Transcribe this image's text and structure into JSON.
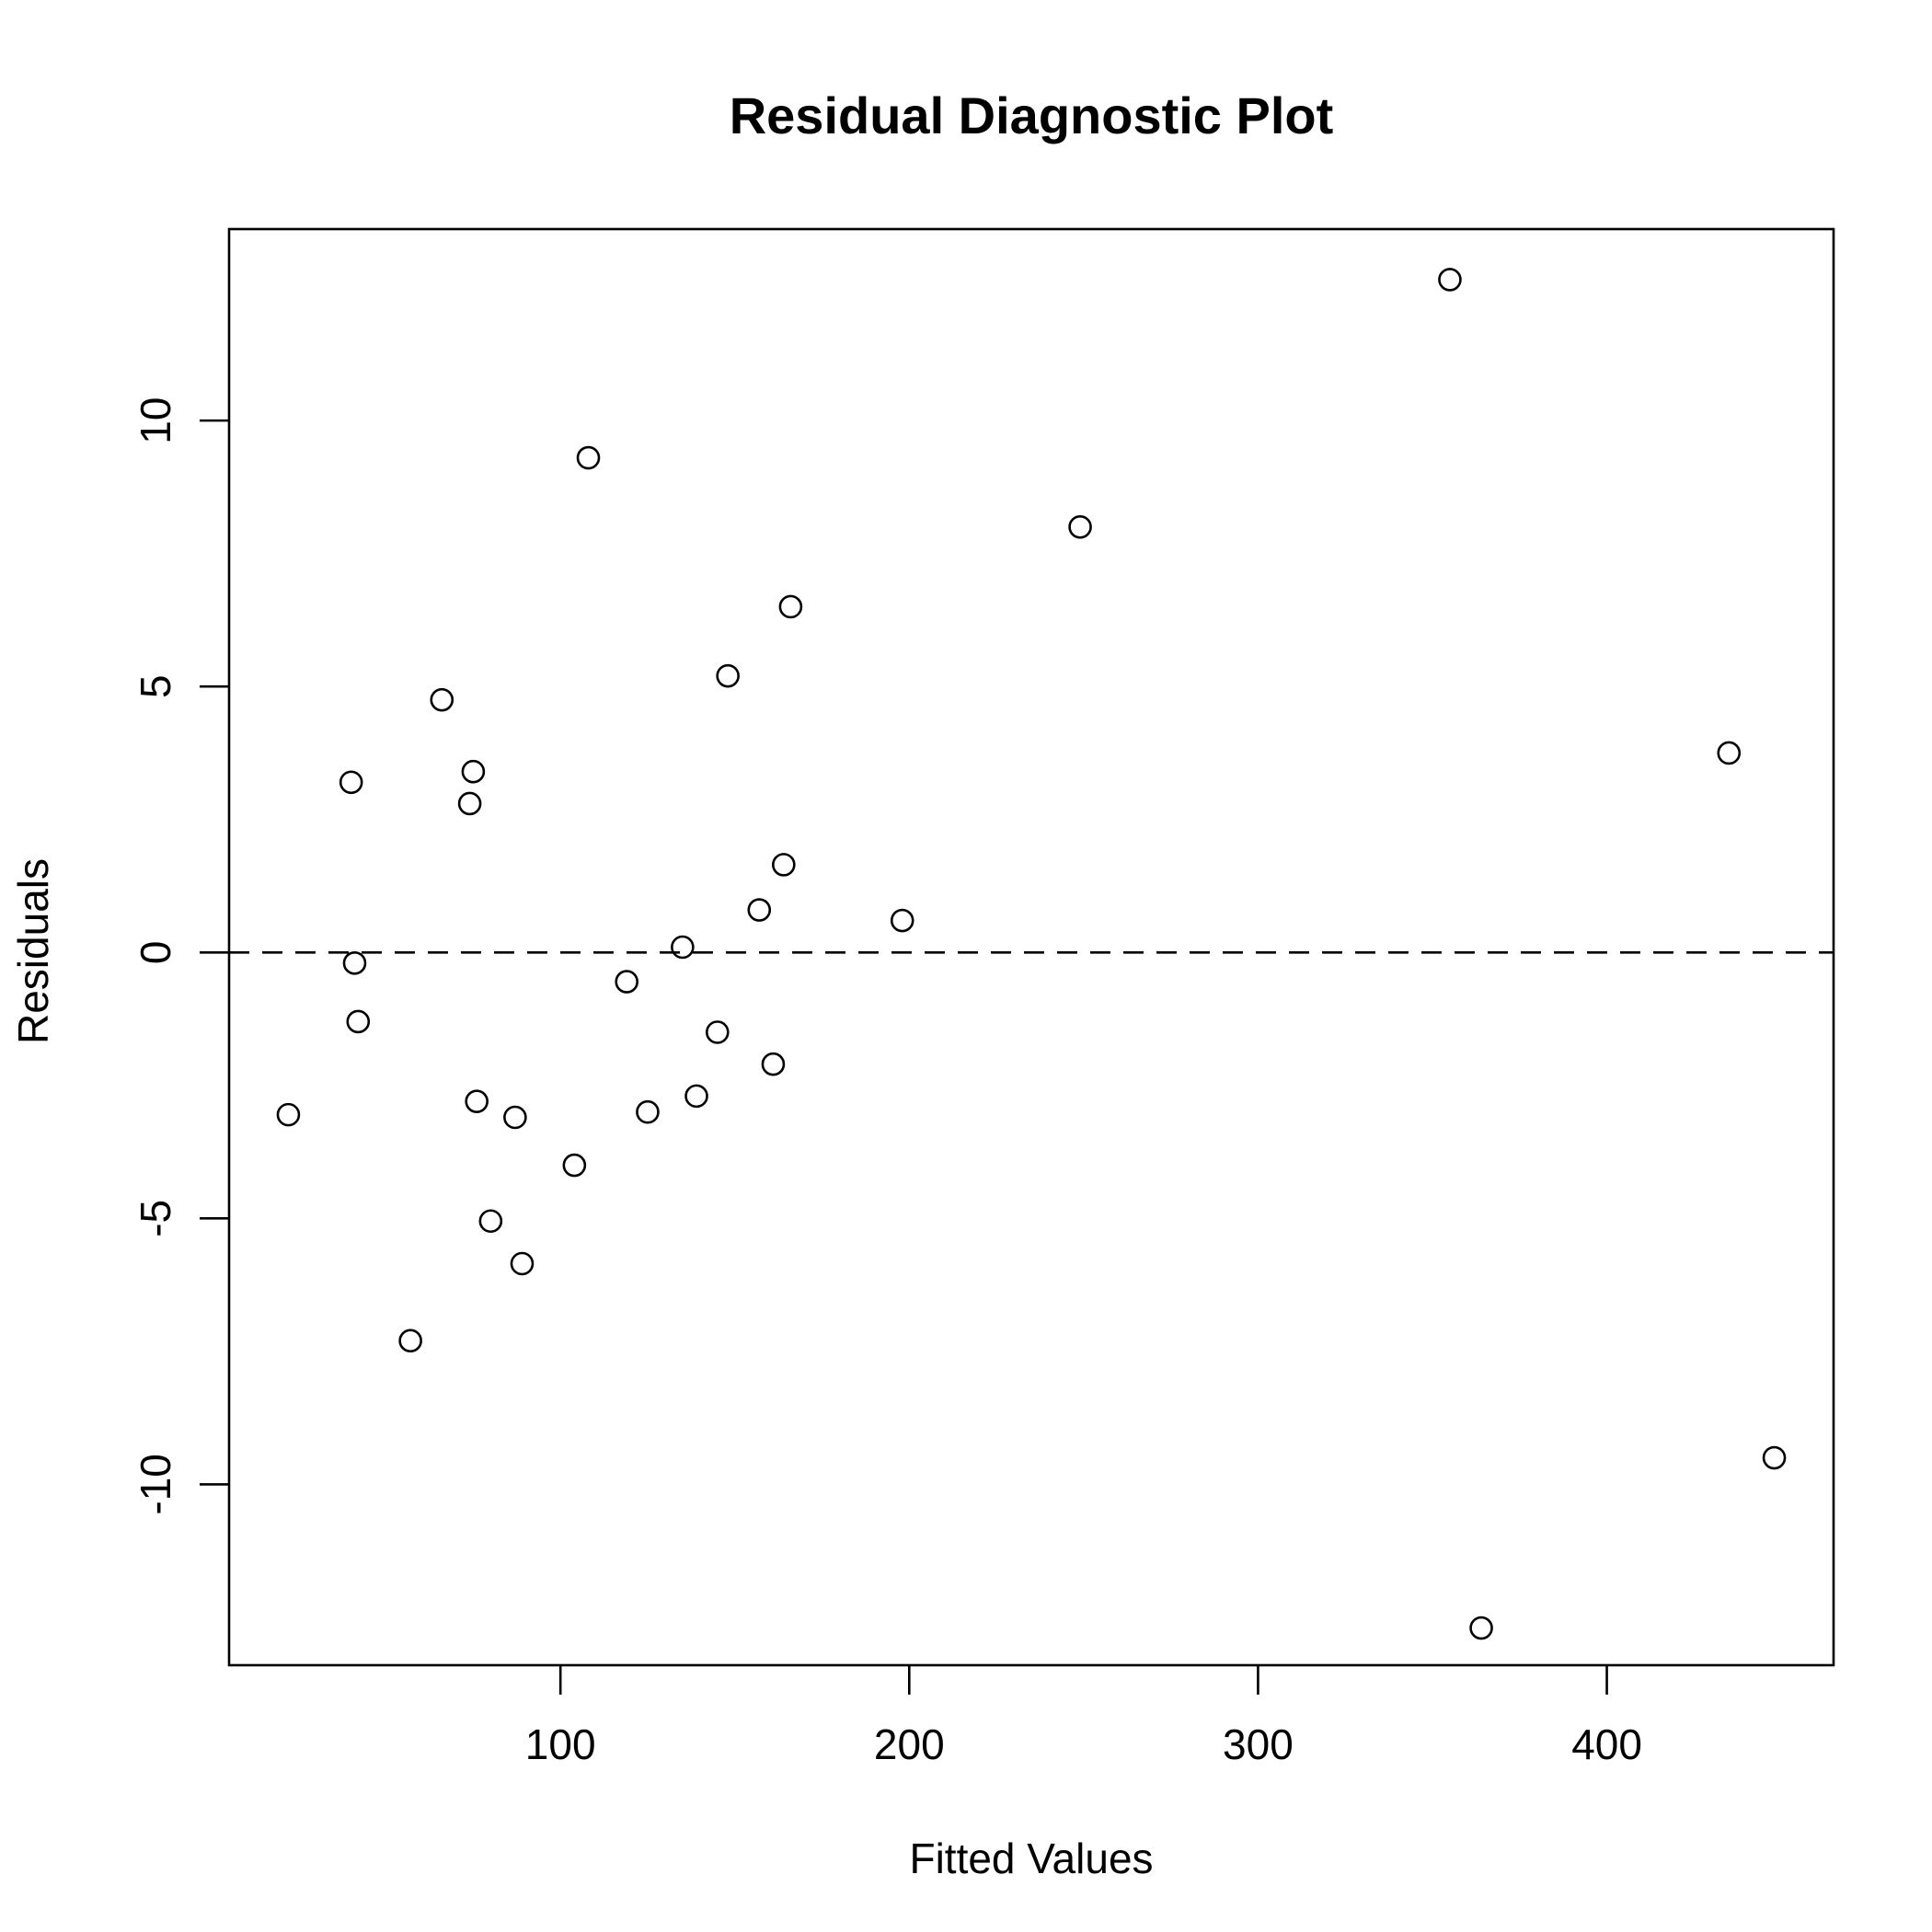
{
  "chart_data": {
    "type": "scatter",
    "title": "Residual Diagnostic Plot",
    "xlabel": "Fitted Values",
    "ylabel": "Residuals",
    "xlim": [
      5,
      465
    ],
    "ylim": [
      -13.4,
      13.6
    ],
    "x_ticks": [
      100,
      200,
      300,
      400
    ],
    "y_ticks": [
      -10,
      -5,
      0,
      5,
      10
    ],
    "x_tick_labels": [
      "100",
      "200",
      "300",
      "400"
    ],
    "y_tick_labels": [
      "-10",
      "-5",
      "0",
      "5",
      "10"
    ],
    "reference_line": {
      "y": 0,
      "style": "dashed"
    },
    "grid": false,
    "point_marker": "open-circle",
    "points": [
      {
        "x": 22,
        "y": -3.05
      },
      {
        "x": 40,
        "y": 3.2
      },
      {
        "x": 41,
        "y": -0.2
      },
      {
        "x": 42,
        "y": -1.3
      },
      {
        "x": 57,
        "y": -7.3
      },
      {
        "x": 66,
        "y": 4.75
      },
      {
        "x": 74,
        "y": 2.8
      },
      {
        "x": 75,
        "y": 3.4
      },
      {
        "x": 76,
        "y": -2.8
      },
      {
        "x": 80,
        "y": -5.05
      },
      {
        "x": 87,
        "y": -3.1
      },
      {
        "x": 89,
        "y": -5.85
      },
      {
        "x": 104,
        "y": -4.0
      },
      {
        "x": 108,
        "y": 9.3
      },
      {
        "x": 119,
        "y": -0.55
      },
      {
        "x": 125,
        "y": -3.0
      },
      {
        "x": 135,
        "y": 0.1
      },
      {
        "x": 139,
        "y": -2.7
      },
      {
        "x": 145,
        "y": -1.5
      },
      {
        "x": 148,
        "y": 5.2
      },
      {
        "x": 157,
        "y": 0.8
      },
      {
        "x": 161,
        "y": -2.1
      },
      {
        "x": 164,
        "y": 1.65
      },
      {
        "x": 166,
        "y": 6.5
      },
      {
        "x": 198,
        "y": 0.6
      },
      {
        "x": 249,
        "y": 8.0
      },
      {
        "x": 355,
        "y": 12.65
      },
      {
        "x": 364,
        "y": -12.7
      },
      {
        "x": 435,
        "y": 3.75
      },
      {
        "x": 448,
        "y": -9.5
      }
    ]
  }
}
